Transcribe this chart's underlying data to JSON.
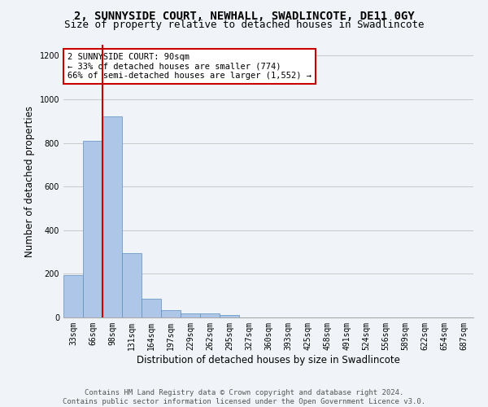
{
  "title_line1": "2, SUNNYSIDE COURT, NEWHALL, SWADLINCOTE, DE11 0GY",
  "title_line2": "Size of property relative to detached houses in Swadlincote",
  "xlabel": "Distribution of detached houses by size in Swadlincote",
  "ylabel": "Number of detached properties",
  "categories": [
    "33sqm",
    "66sqm",
    "98sqm",
    "131sqm",
    "164sqm",
    "197sqm",
    "229sqm",
    "262sqm",
    "295sqm",
    "327sqm",
    "360sqm",
    "393sqm",
    "425sqm",
    "458sqm",
    "491sqm",
    "524sqm",
    "556sqm",
    "589sqm",
    "622sqm",
    "654sqm",
    "687sqm"
  ],
  "values": [
    195,
    810,
    920,
    295,
    85,
    35,
    20,
    18,
    12,
    0,
    0,
    0,
    0,
    0,
    0,
    0,
    0,
    0,
    0,
    0,
    0
  ],
  "bar_color": "#aec6e8",
  "bar_edge_color": "#5a8fc0",
  "vline_color": "#cc0000",
  "annotation_text": "2 SUNNYSIDE COURT: 90sqm\n← 33% of detached houses are smaller (774)\n66% of semi-detached houses are larger (1,552) →",
  "annotation_box_color": "#ffffff",
  "annotation_box_edge": "#cc0000",
  "ylim": [
    0,
    1250
  ],
  "yticks": [
    0,
    200,
    400,
    600,
    800,
    1000,
    1200
  ],
  "grid_color": "#cccccc",
  "footer_line1": "Contains HM Land Registry data © Crown copyright and database right 2024.",
  "footer_line2": "Contains public sector information licensed under the Open Government Licence v3.0.",
  "bg_color": "#f0f4f8",
  "title_fontsize": 10,
  "subtitle_fontsize": 9,
  "axis_label_fontsize": 8.5,
  "tick_fontsize": 7,
  "annotation_fontsize": 7.5,
  "footer_fontsize": 6.5
}
